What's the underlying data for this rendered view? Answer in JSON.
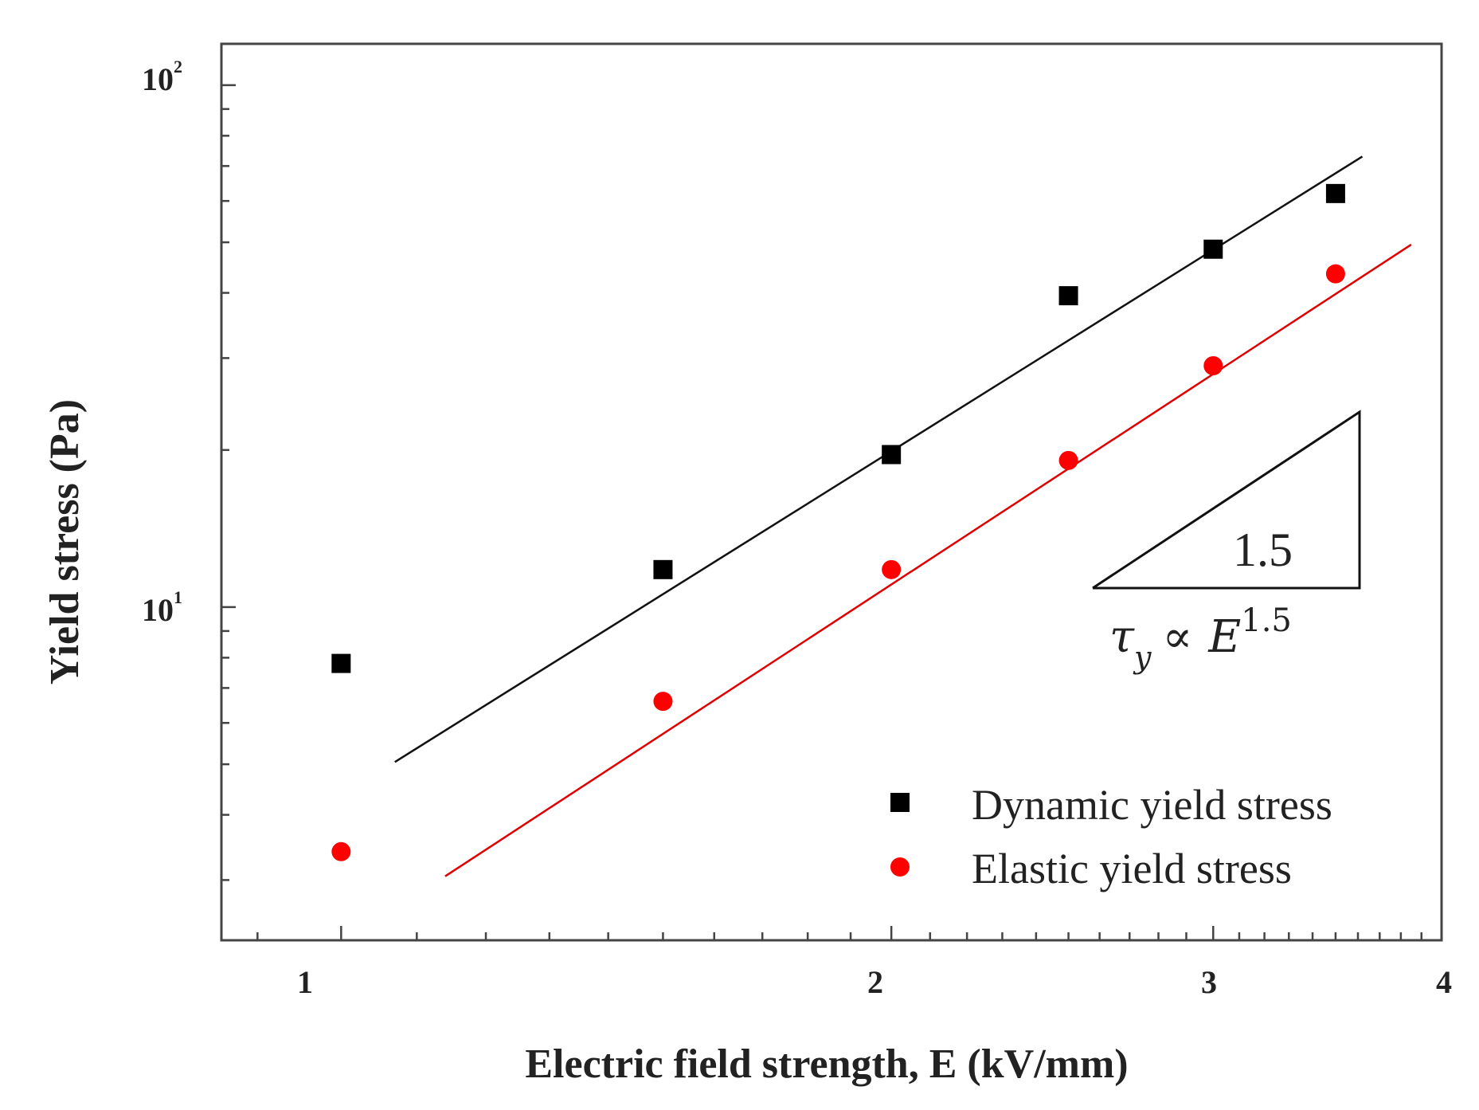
{
  "chart_data": {
    "type": "scatter",
    "xscale": "log",
    "yscale": "log",
    "xlim": [
      0.86,
      4.0
    ],
    "ylim": [
      2.3,
      120
    ],
    "xticks": [
      1,
      2,
      3,
      4
    ],
    "xtick_labels": [
      "1",
      "2",
      "3",
      "4"
    ],
    "yticks": [
      10,
      100
    ],
    "ytick_labels": [
      {
        "base": "10",
        "exp": "1"
      },
      {
        "base": "10",
        "exp": "2"
      }
    ],
    "xlabel": "Electric field strength, E (kV/mm)",
    "ylabel": "Yield stress (Pa)",
    "legend_position": "bottom-right",
    "series": [
      {
        "name": "Dynamic yield stress",
        "marker": "square",
        "color": "#000000",
        "x": [
          1.0,
          1.5,
          2.0,
          2.5,
          3.0,
          3.5
        ],
        "y": [
          7.8,
          11.8,
          19.6,
          39.5,
          48.5,
          62.0
        ]
      },
      {
        "name": "Elastic yield stress",
        "marker": "circle",
        "color": "#ff0000",
        "x": [
          1.0,
          1.5,
          2.0,
          2.5,
          3.0,
          3.5
        ],
        "y": [
          3.4,
          6.6,
          11.8,
          19.1,
          29.0,
          43.5
        ]
      }
    ],
    "fit_lines": [
      {
        "series": "Dynamic yield stress",
        "color": "#000000",
        "x": [
          1.07,
          3.62
        ],
        "y": [
          5.05,
          73.0
        ]
      },
      {
        "series": "Elastic yield stress",
        "color": "#e00000",
        "x": [
          1.14,
          3.85
        ],
        "y": [
          3.05,
          49.5
        ]
      }
    ],
    "annotations": {
      "slope_label": "1.5",
      "equation": {
        "tau": "τ",
        "sub": "y",
        "prop": "∝",
        "var": "E",
        "exp": "1.5"
      }
    }
  }
}
